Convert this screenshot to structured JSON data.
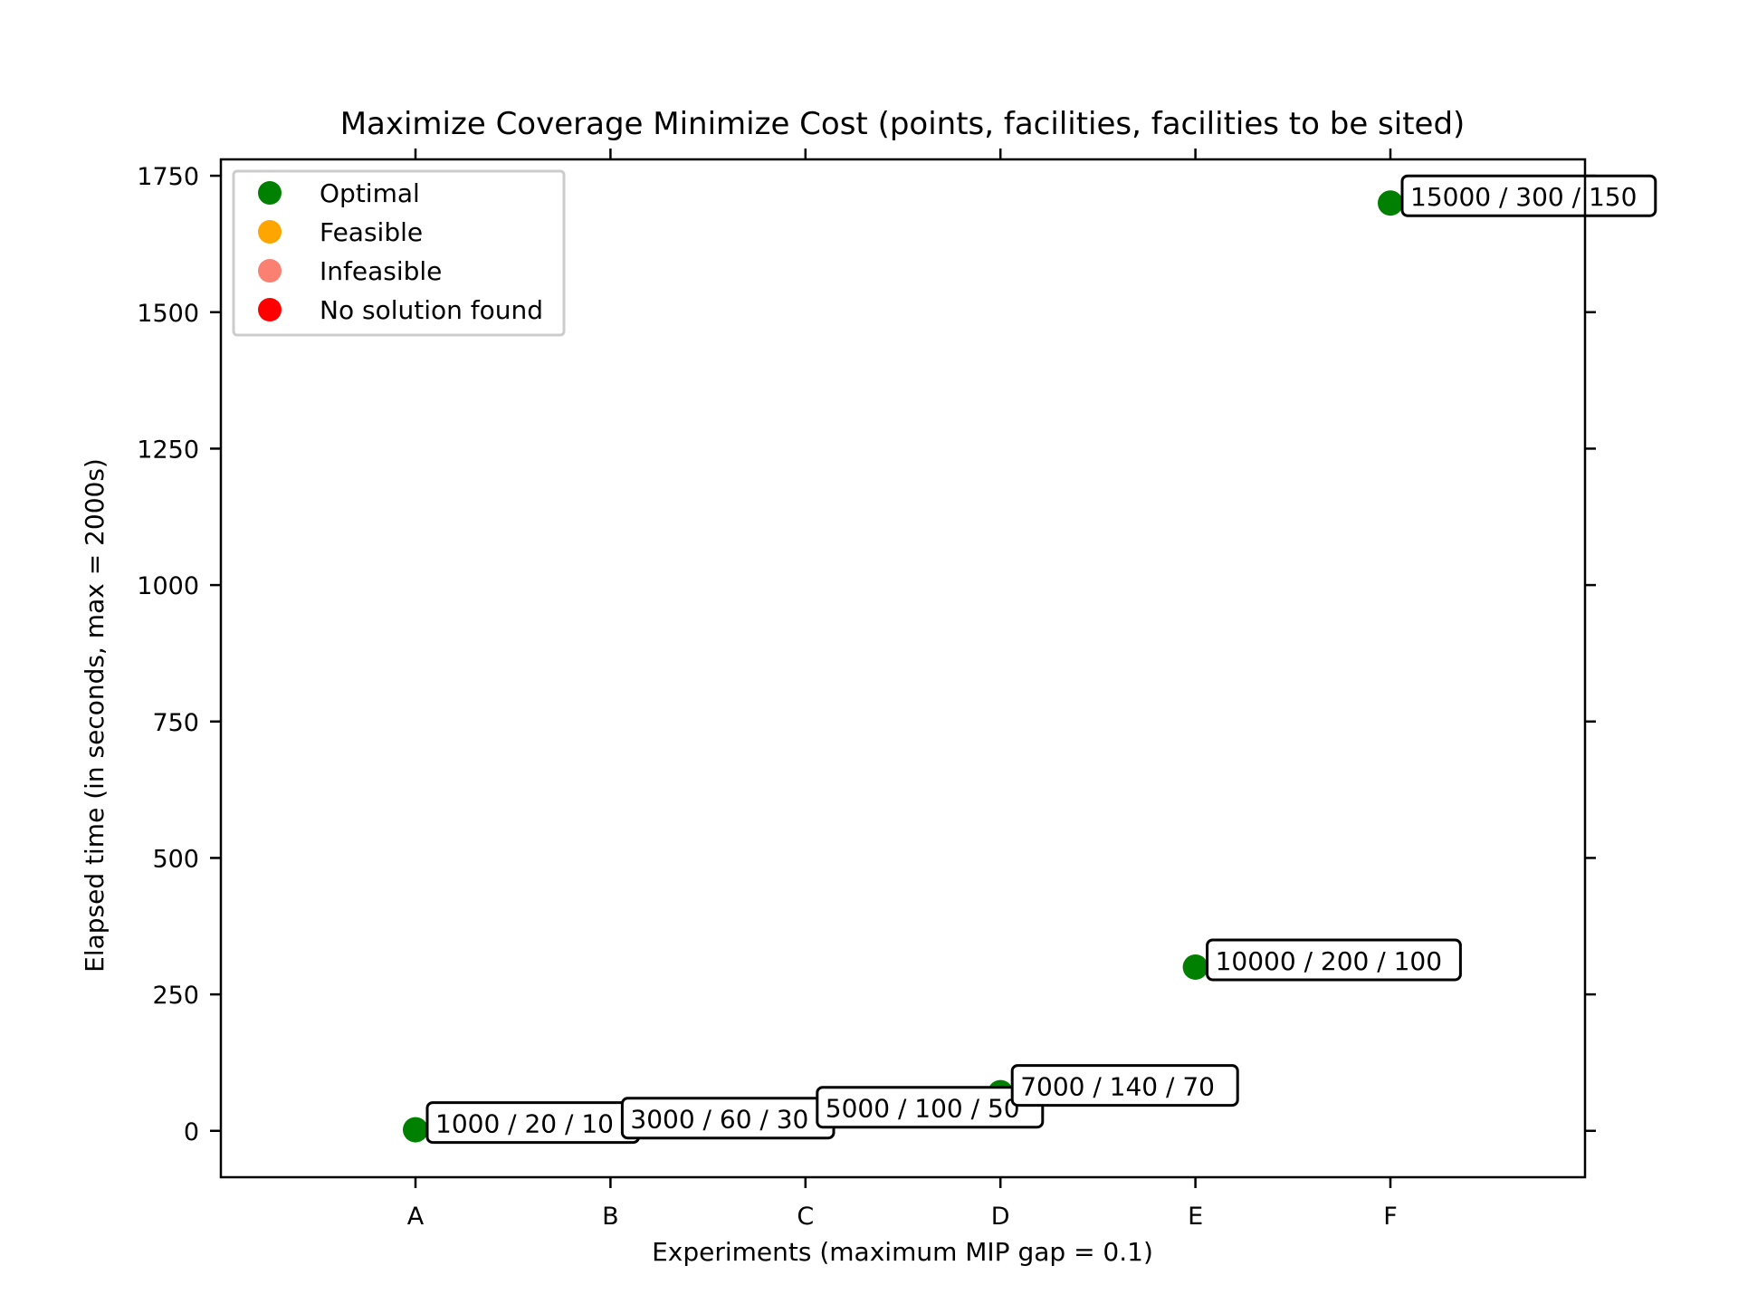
{
  "chart_data": {
    "type": "scatter",
    "title": "Maximize Coverage Minimize Cost (points, facilities, facilities to be sited)",
    "xlabel": "Experiments (maximum MIP gap = 0.1)",
    "ylabel": "Elapsed time (in seconds, max = 2000s)",
    "categories": [
      "A",
      "B",
      "C",
      "D",
      "E",
      "F"
    ],
    "ylim": [
      -85,
      1780
    ],
    "yticks": [
      0,
      250,
      500,
      750,
      1000,
      1250,
      1500,
      1750
    ],
    "grid": false,
    "legend_position": "top-left",
    "legend": [
      {
        "label": "Optimal",
        "color": "#008000"
      },
      {
        "label": "Feasible",
        "color": "#ffa500"
      },
      {
        "label": "Infeasible",
        "color": "#fa8072"
      },
      {
        "label": "No solution found",
        "color": "#ff0000"
      }
    ],
    "points": [
      {
        "x": "A",
        "y": 2,
        "status": "Optimal",
        "annotation": "1000 / 20 / 10"
      },
      {
        "x": "B",
        "y": 10,
        "status": "Optimal",
        "annotation": "3000 / 60 / 30"
      },
      {
        "x": "C",
        "y": 30,
        "status": "Optimal",
        "annotation": "5000 / 100 / 50"
      },
      {
        "x": "D",
        "y": 70,
        "status": "Optimal",
        "annotation": "7000 / 140 / 70"
      },
      {
        "x": "E",
        "y": 300,
        "status": "Optimal",
        "annotation": "10000 / 200 / 100"
      },
      {
        "x": "F",
        "y": 1700,
        "status": "Optimal",
        "annotation": "15000 / 300 / 150"
      }
    ]
  }
}
